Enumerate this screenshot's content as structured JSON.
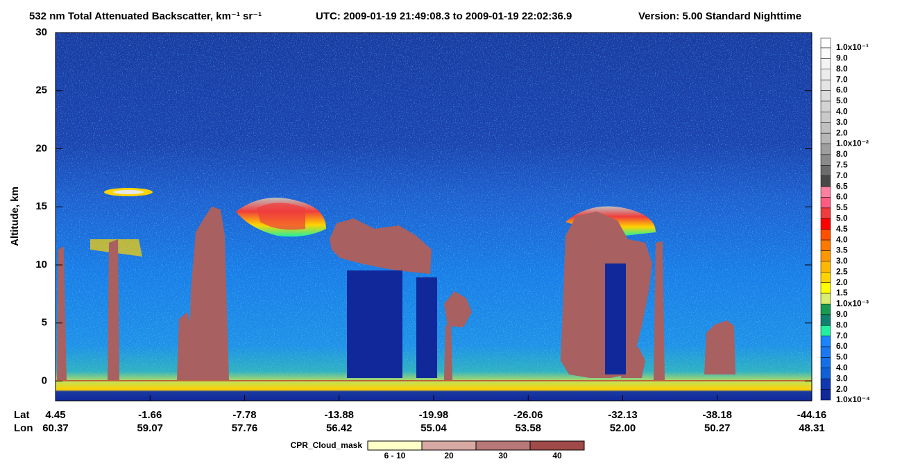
{
  "chart_data": {
    "type": "curtain",
    "title": "532 nm Total Attenuated Backscatter, km⁻¹ sr⁻¹",
    "time_range": "UTC:  2009-01-19 21:49:08.3  to  2009-01-19 22:02:36.9",
    "version": "Version: 5.00  Standard  Nighttime",
    "y_label": "Altitude, km",
    "ylim": [
      -1.7,
      30
    ],
    "yticks": [
      0,
      5,
      10,
      15,
      20,
      25,
      30
    ],
    "x_row_labels": [
      "Lat",
      "Lon"
    ],
    "lat": [
      "4.45",
      "-1.66",
      "-7.78",
      "-13.88",
      "-19.98",
      "-26.06",
      "-32.13",
      "-38.18",
      "-44.16"
    ],
    "lon": [
      "60.37",
      "59.07",
      "57.76",
      "56.42",
      "55.04",
      "53.58",
      "52.00",
      "50.27",
      "48.31"
    ],
    "colorbar": {
      "labels": [
        "1.0x10⁻¹",
        "9.0",
        "8.0",
        "7.0",
        "6.0",
        "5.0",
        "4.0",
        "3.0",
        "2.0",
        "1.0x10⁻²",
        "8.0",
        "7.5",
        "7.0",
        "6.5",
        "6.0",
        "5.5",
        "5.0",
        "4.5",
        "4.0",
        "3.5",
        "3.0",
        "2.5",
        "2.0",
        "1.5",
        "1.0x10⁻³",
        "9.0",
        "8.0",
        "7.0",
        "6.0",
        "5.0",
        "4.0",
        "3.0",
        "2.0",
        "1.0x10⁻⁴"
      ],
      "colors": [
        "#ffffff",
        "#fafafa",
        "#f3f3f3",
        "#ececec",
        "#e4e4e4",
        "#dcdcdc",
        "#d3d3d3",
        "#cacaca",
        "#c0c0c0",
        "#b6b6b6",
        "#9e9e9e",
        "#8a8a8a",
        "#6c6c6c",
        "#484848",
        "#ff80a0",
        "#ff5c80",
        "#f03c3c",
        "#ff0000",
        "#ff5000",
        "#ff7800",
        "#ff9800",
        "#ffb800",
        "#ffd400",
        "#ffff00",
        "#d8ec70",
        "#1a9a50",
        "#108070",
        "#20f0a0",
        "#1a84ff",
        "#1a78f0",
        "#1470e8",
        "#1060d8",
        "#1038b0",
        "#10289a"
      ]
    },
    "cloud_mask_legend": {
      "title": "CPR_Cloud_mask",
      "labels": [
        "6 - 10",
        "20",
        "30",
        "40"
      ],
      "colors": [
        "#ffffc8",
        "#d8aaa4",
        "#b87878",
        "#a04a4a"
      ]
    }
  }
}
